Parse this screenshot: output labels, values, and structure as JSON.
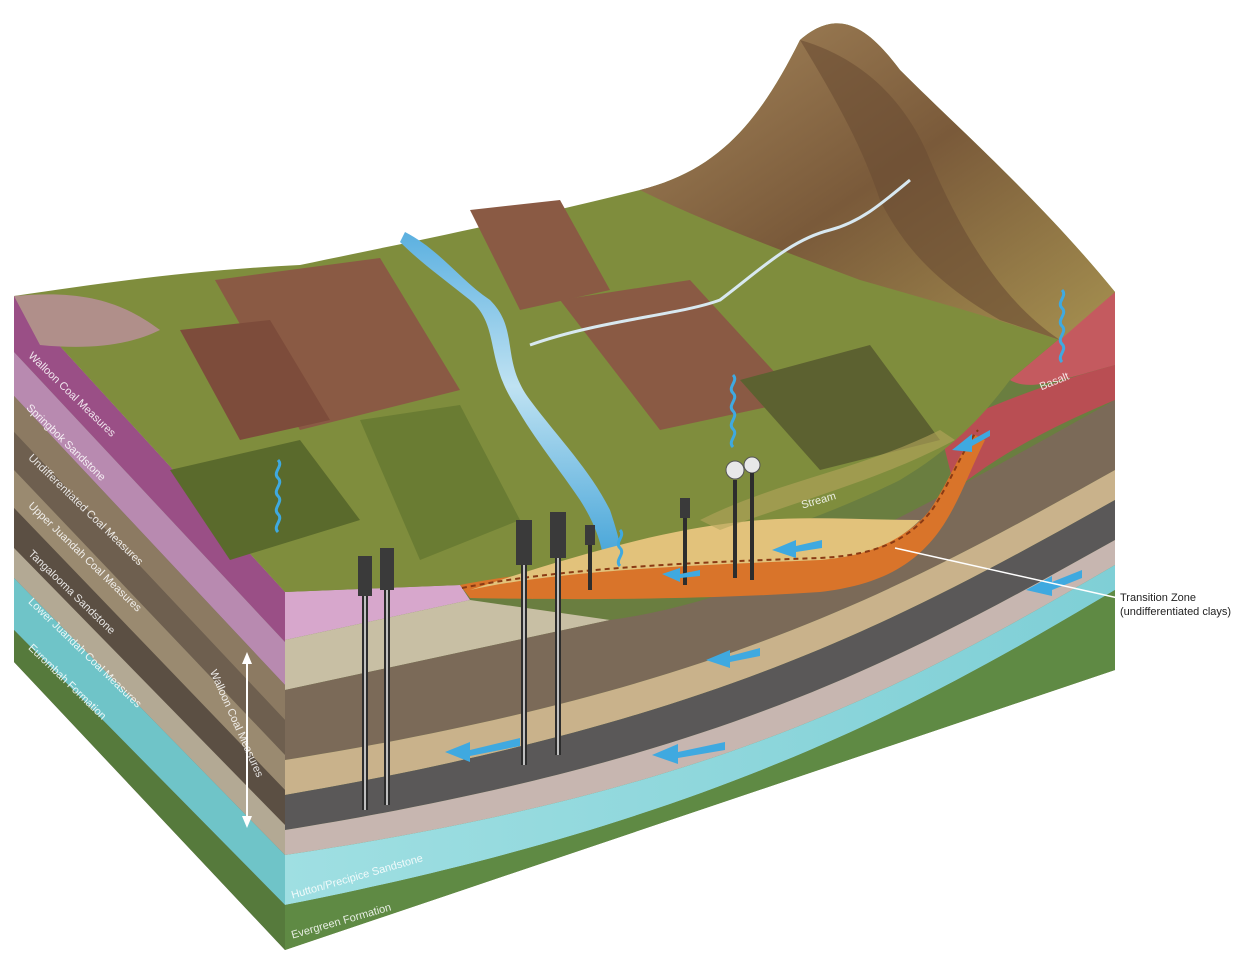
{
  "diagram": {
    "left_face_labels": [
      "Walloon Coal Measures",
      "Springbok Sandstone",
      "Undifferentiated Coal Measures",
      "Upper Juandah Coal Measures",
      "Tangalooma Sandstone",
      "Lower Juandah Coal Measures",
      "Eurombah Formation"
    ],
    "front_face_labels": {
      "vertical_unit": "Walloon Coal Measures",
      "hutton": "Hutton/Precipice Sandstone",
      "evergreen": "Evergreen Formation"
    },
    "surface_labels": {
      "stream": "Stream",
      "basalt": "Basalt"
    },
    "transition_zone": {
      "title": "Transition Zone",
      "subtitle": "(undifferentiated clays)"
    },
    "colors": {
      "water": "#3fa9e0",
      "aquifer": "#8fd6dd",
      "basalt": "#c0545b",
      "alluvium": "#e2c27b",
      "transition": "#d9742a",
      "pasture": "#7e8f3c",
      "ploughed": "#8a5a44",
      "mountain": "#8a6a44"
    }
  }
}
